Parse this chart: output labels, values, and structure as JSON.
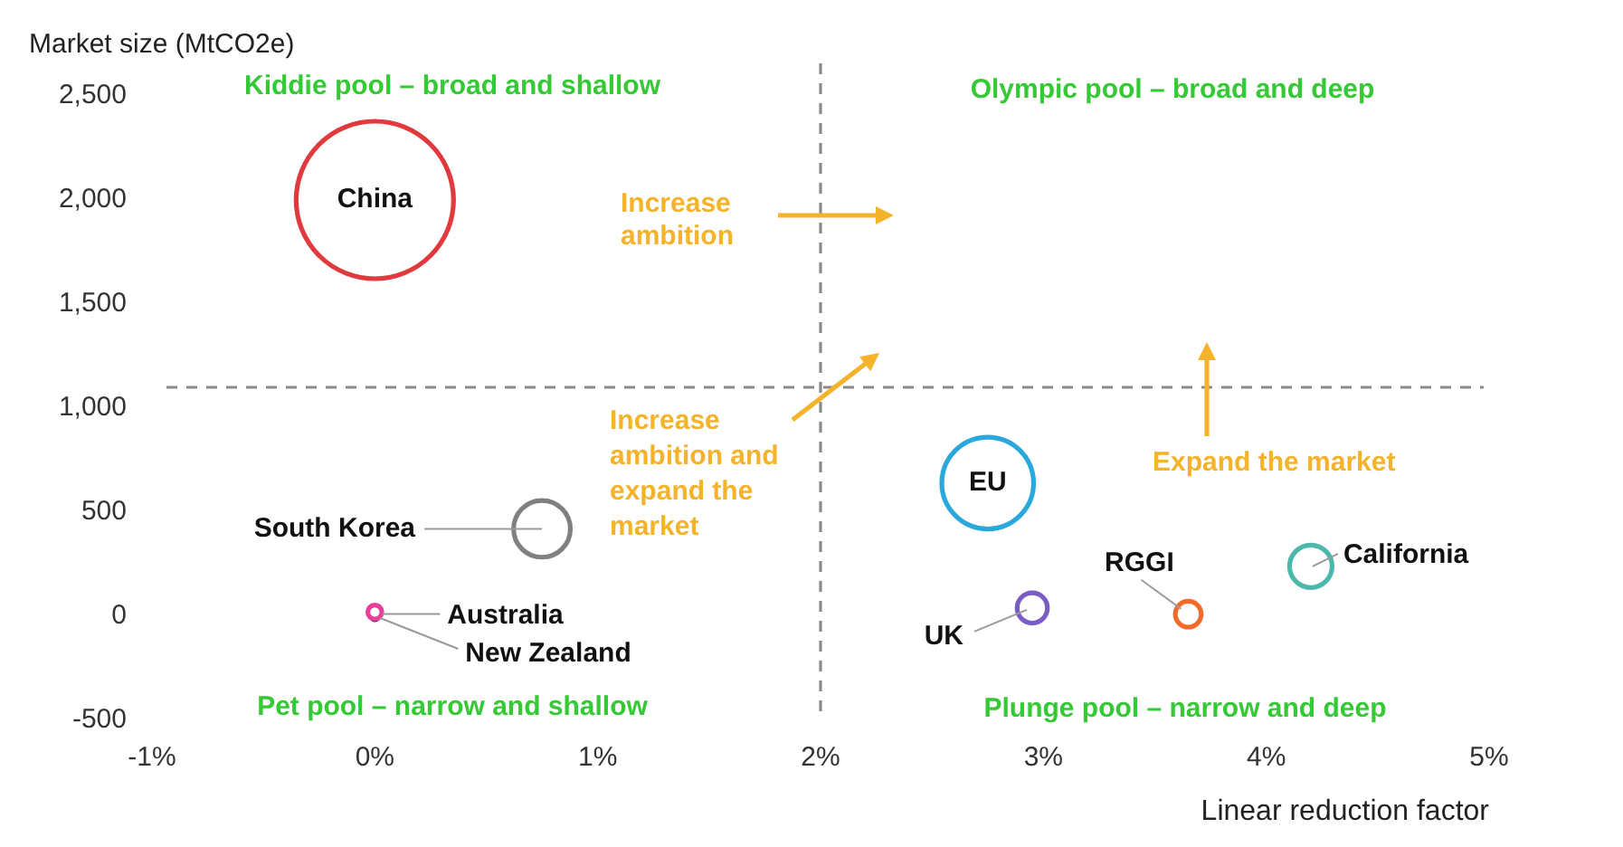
{
  "chart_data": {
    "type": "bubble",
    "xlabel": "Linear reduction factor",
    "ylabel": "Market size (MtCO2e)",
    "xlim": [
      -1,
      5
    ],
    "xticks": [
      {
        "value": -1,
        "label": "-1%"
      },
      {
        "value": 0,
        "label": "0%"
      },
      {
        "value": 1,
        "label": "1%"
      },
      {
        "value": 2,
        "label": "2%"
      },
      {
        "value": 3,
        "label": "3%"
      },
      {
        "value": 4,
        "label": "4%"
      },
      {
        "value": 5,
        "label": "5%"
      }
    ],
    "ylim": [
      -500,
      2500
    ],
    "yticks": [
      -500,
      0,
      500,
      {
        "value": 1000,
        "label": "1,000"
      },
      {
        "value": 1500,
        "label": "1,500"
      },
      {
        "value": 2000,
        "label": "2,000"
      },
      {
        "value": 2500,
        "label": "2,500"
      }
    ],
    "grid": false,
    "legend": false,
    "series": [
      {
        "name": "China",
        "color": "#e0393e",
        "x": [
          0
        ],
        "values": [
          2000
        ],
        "sizes": [
          1
        ]
      },
      {
        "name": "South Korea",
        "color": "#808080",
        "x": [
          0.75
        ],
        "values": [
          420
        ],
        "sizes": [
          0.13
        ]
      },
      {
        "name": "Australia",
        "color": "#e8409a",
        "x": [
          0
        ],
        "values": [
          20
        ],
        "sizes": [
          0.008
        ]
      },
      {
        "name": "New Zealand",
        "color": "#222222",
        "x": [
          0
        ],
        "values": [
          0
        ],
        "sizes": [
          0.002
        ]
      },
      {
        "name": "EU",
        "color": "#2aa8dc",
        "x": [
          2.75
        ],
        "values": [
          640
        ],
        "sizes": [
          0.34
        ]
      },
      {
        "name": "UK",
        "color": "#7a5cc4",
        "x": [
          2.95
        ],
        "values": [
          40
        ],
        "sizes": [
          0.037
        ]
      },
      {
        "name": "RGGI",
        "color": "#f26b2a",
        "x": [
          3.65
        ],
        "values": [
          10
        ],
        "sizes": [
          0.027
        ]
      },
      {
        "name": "California",
        "color": "#4bb8ac",
        "x": [
          4.2
        ],
        "values": [
          240
        ],
        "sizes": [
          0.073
        ]
      }
    ],
    "ref_lines": [
      {
        "axis": "x",
        "value": 2,
        "color": "#8a8a8a",
        "line_style": "dashed"
      },
      {
        "axis": "y",
        "value": 1100,
        "color": "#8a8a8a",
        "line_style": "dashed"
      }
    ],
    "annotations": [
      "Kiddie pool – broad and shallow",
      "Olympic pool – broad and deep",
      "Pet pool – narrow and shallow",
      "Plunge pool – narrow and deep",
      "Increase ambition",
      "Increase ambition and expand the market",
      "Expand the market"
    ]
  }
}
